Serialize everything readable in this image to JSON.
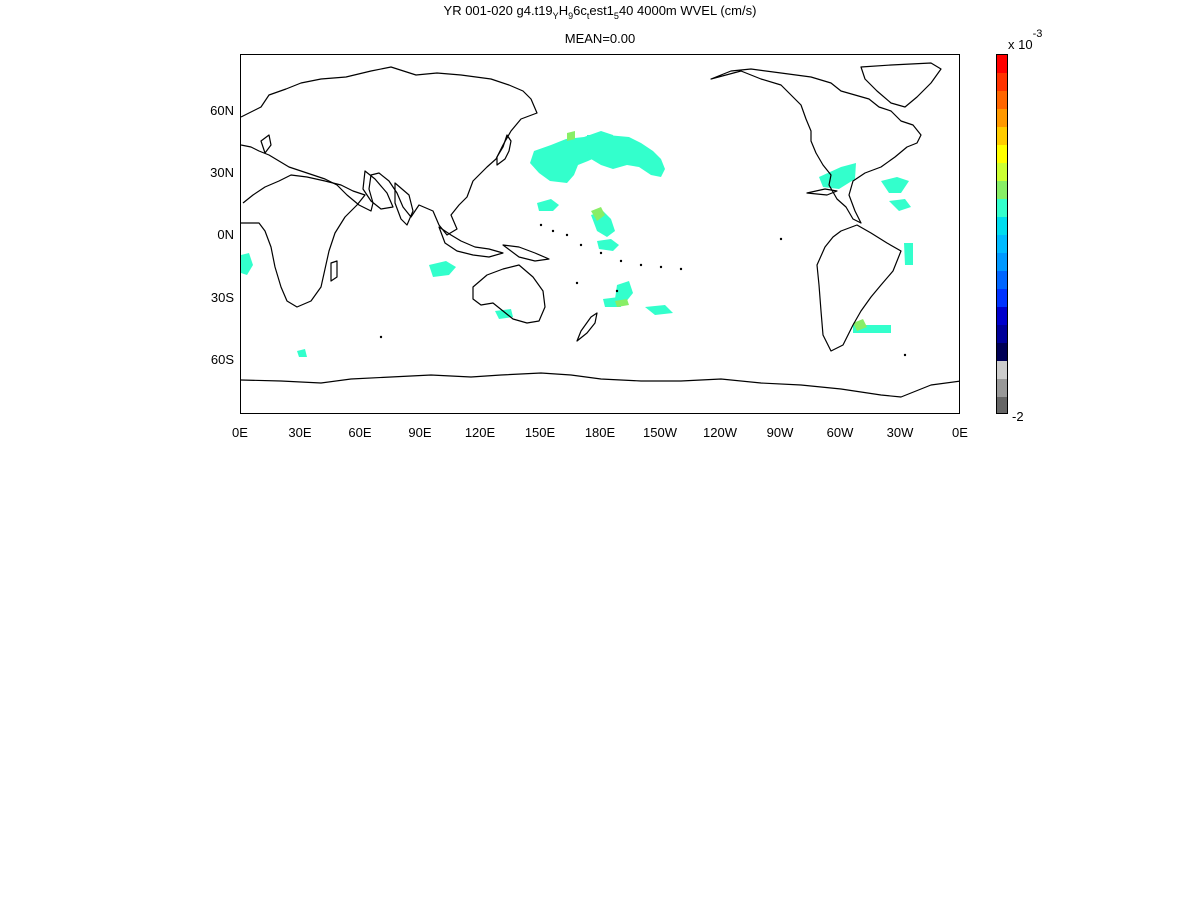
{
  "title": {
    "part1": "YR 001-020 g4.t19",
    "sub1": "Y",
    "part2": "H",
    "sub2": "9",
    "part3": "6c",
    "sub3": "t",
    "part4": "est1",
    "sub4": "5",
    "part5": "40 4000m WVEL (cm/s)"
  },
  "subtitle": "MEAN=0.00",
  "y_axis": [
    "60N",
    "30N",
    "0N",
    "30S",
    "60S"
  ],
  "x_axis": [
    "0E",
    "30E",
    "60E",
    "90E",
    "120E",
    "150E",
    "180E",
    "150W",
    "120W",
    "90W",
    "60W",
    "30W",
    "0E"
  ],
  "colorbar": {
    "scale_base": "x 10",
    "scale_exponent": "-3",
    "min_label": "-2",
    "colors": [
      "#ff0000",
      "#ff3300",
      "#ff6600",
      "#ff9900",
      "#ffcc00",
      "#ffff00",
      "#ccff33",
      "#88ee66",
      "#33ffcc",
      "#00ddee",
      "#00bbff",
      "#0099ff",
      "#0066ff",
      "#0033ff",
      "#0000cc",
      "#000099",
      "#000055",
      "#cccccc",
      "#999999",
      "#666666"
    ]
  },
  "colors": {
    "anomaly_primary": "#33ffcc",
    "anomaly_secondary": "#88ee66",
    "coast": "#000000"
  }
}
